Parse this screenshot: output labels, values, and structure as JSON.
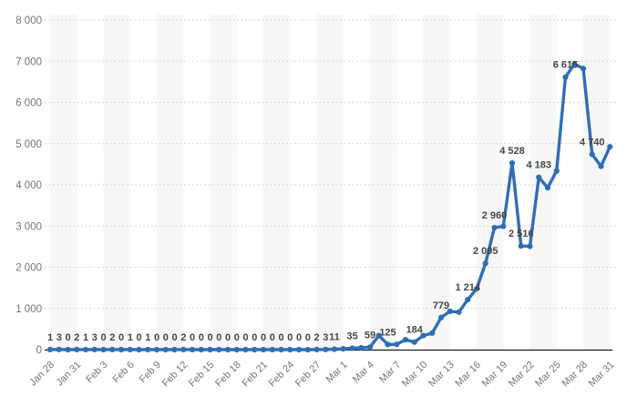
{
  "chart_data": {
    "type": "line",
    "title": "",
    "xlabel": "",
    "ylabel": "",
    "ylim": [
      0,
      8000
    ],
    "y_tick_step": 1000,
    "y_tick_labels": [
      "0",
      "1 000",
      "2 000",
      "3 000",
      "4 000",
      "5 000",
      "6 000",
      "7 000",
      "8 000"
    ],
    "x_tick_labels": [
      "Jan 28",
      "Jan 31",
      "Feb 3",
      "Feb 6",
      "Feb 9",
      "Feb 12",
      "Feb 15",
      "Feb 18",
      "Feb 21",
      "Feb 24",
      "Feb 27",
      "Mar 1",
      "Mar 4",
      "Mar 7",
      "Mar 10",
      "Mar 13",
      "Mar 16",
      "Mar 19",
      "Mar 22",
      "Mar 25",
      "Mar 28",
      "Mar 31"
    ],
    "x_tick_every_n_points": 3,
    "grid": "dotted-horizontal",
    "legend": "none",
    "background_bands": "alternating-vertical-per-3-days",
    "x": [
      "Jan 28",
      "Jan 29",
      "Jan 30",
      "Jan 31",
      "Feb 1",
      "Feb 2",
      "Feb 3",
      "Feb 4",
      "Feb 5",
      "Feb 6",
      "Feb 7",
      "Feb 8",
      "Feb 9",
      "Feb 10",
      "Feb 11",
      "Feb 12",
      "Feb 13",
      "Feb 14",
      "Feb 15",
      "Feb 16",
      "Feb 17",
      "Feb 18",
      "Feb 19",
      "Feb 20",
      "Feb 21",
      "Feb 22",
      "Feb 23",
      "Feb 24",
      "Feb 25",
      "Feb 26",
      "Feb 27",
      "Feb 28",
      "Feb 29",
      "Mar 1",
      "Mar 2",
      "Mar 3",
      "Mar 4",
      "Mar 5",
      "Mar 6",
      "Mar 7",
      "Mar 8",
      "Mar 9",
      "Mar 10",
      "Mar 11",
      "Mar 12",
      "Mar 13",
      "Mar 14",
      "Mar 15",
      "Mar 16",
      "Mar 17",
      "Mar 18",
      "Mar 19",
      "Mar 20",
      "Mar 21",
      "Mar 22",
      "Mar 23",
      "Mar 24",
      "Mar 25",
      "Mar 26",
      "Mar 27",
      "Mar 28",
      "Mar 29",
      "Mar 30",
      "Mar 31"
    ],
    "values": [
      1,
      3,
      0,
      2,
      1,
      3,
      0,
      2,
      0,
      1,
      0,
      1,
      0,
      0,
      0,
      2,
      0,
      0,
      0,
      0,
      0,
      0,
      0,
      0,
      0,
      0,
      0,
      0,
      0,
      0,
      2,
      3,
      11,
      20,
      35,
      45,
      59,
      343,
      125,
      129,
      241,
      184,
      341,
      401,
      779,
      930,
      910,
      1214,
      1477,
      2095,
      2960,
      2993,
      4528,
      2516,
      2509,
      4183,
      3930,
      4337,
      6615,
      6933,
      6824,
      4740,
      4450,
      4923
    ],
    "point_labels": [
      "1",
      "3",
      "0",
      "2",
      "1",
      "3",
      "0",
      "2",
      "0",
      "1",
      "0",
      "1",
      "0",
      "0",
      "0",
      "2",
      "0",
      "0",
      "0",
      "0",
      "0",
      "0",
      "0",
      "0",
      "0",
      "0",
      "0",
      "0",
      "0",
      "0",
      "2",
      "3",
      "11",
      null,
      "35",
      null,
      "59",
      null,
      "125",
      null,
      null,
      "184",
      null,
      null,
      "779",
      null,
      null,
      "1 214",
      null,
      "2 095",
      "2 960",
      null,
      "4 528",
      "2 516",
      null,
      "4 183",
      null,
      null,
      "6 615",
      null,
      null,
      "4 740",
      null,
      null
    ],
    "colors": {
      "line": "#2f6eb6",
      "marker": "#2f6eb6",
      "point_label": "#454545",
      "axis_tick_label": "#757575",
      "gridline": "#c9c9c9",
      "baseline": "#1a1a1a",
      "band": "#f7f7f7",
      "background": "#ffffff"
    }
  }
}
